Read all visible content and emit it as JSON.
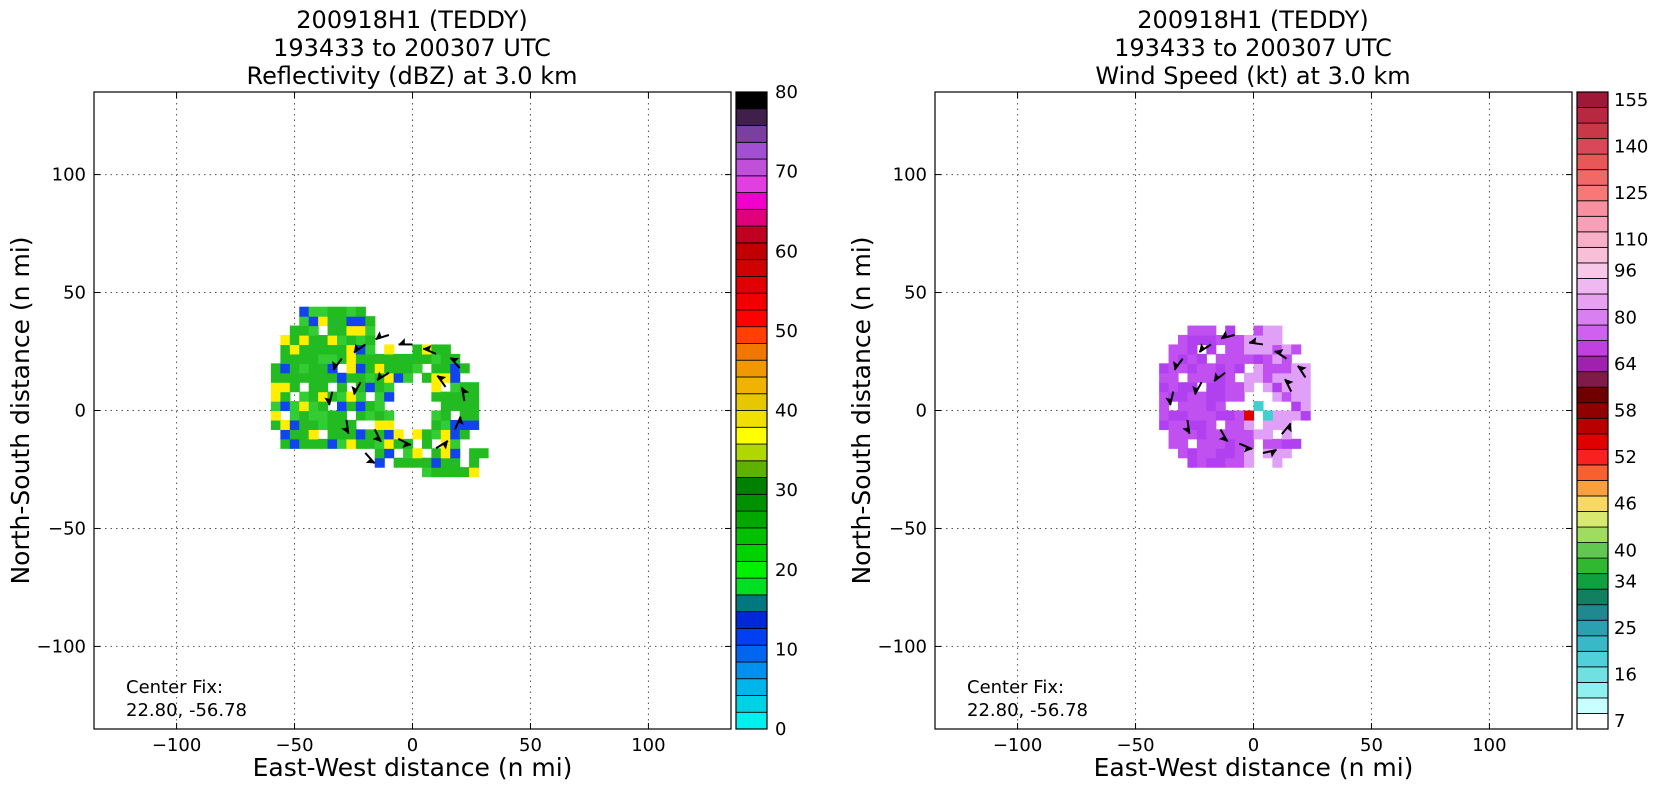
{
  "chart_data": [
    {
      "type": "heatmap",
      "title_lines": [
        "200918H1 (TEDDY)",
        "193433 to 200307 UTC",
        "Reflectivity (dBZ) at 3.0 km"
      ],
      "xlabel": "East-West distance (n mi)",
      "ylabel": "North-South distance (n mi)",
      "xlim": [
        -135,
        135
      ],
      "ylim": [
        -135,
        135
      ],
      "xticks": [
        -100,
        -50,
        0,
        50,
        100
      ],
      "yticks": [
        -100,
        -50,
        0,
        50,
        100
      ],
      "xtick_labels": [
        "−100",
        "−50",
        "0",
        "50",
        "100"
      ],
      "ytick_labels": [
        "−100",
        "−50",
        "0",
        "50",
        "100"
      ],
      "grid": true,
      "annotation": [
        "Center Fix:",
        "22.80, -56.78"
      ],
      "colorbar": {
        "range": [
          0,
          80
        ],
        "tick_values": [
          0,
          10,
          20,
          30,
          40,
          50,
          60,
          70,
          80
        ],
        "tick_labels": [
          "0",
          "10",
          "20",
          "30",
          "40",
          "50",
          "60",
          "70",
          "80"
        ],
        "colors": [
          "#00f0f0",
          "#00d2e6",
          "#00b4ec",
          "#0090f0",
          "#0066f0",
          "#0040f0",
          "#0028d8",
          "#00787f",
          "#00e020",
          "#00f000",
          "#00d200",
          "#00c000",
          "#00a800",
          "#009000",
          "#008000",
          "#60b000",
          "#b0d800",
          "#ffff00",
          "#f0e000",
          "#e6c800",
          "#f0b400",
          "#f09800",
          "#f07800",
          "#ff4000",
          "#ff0000",
          "#f00000",
          "#e00000",
          "#d00000",
          "#c00000",
          "#c00020",
          "#e0007a",
          "#f000c8",
          "#e040e0",
          "#c050d8",
          "#a050d0",
          "#7a40a0",
          "#40204a",
          "#000000"
        ]
      },
      "features": {
        "center_x": 0,
        "center_y": 0,
        "eye_radius": 10,
        "ring_outer_radius": 28,
        "outer_band": "west-northwest arc from about -62 to -20 x, -20 to 45 y",
        "dominant_colors": [
          "#22bb22",
          "#ffee00",
          "#1144ee"
        ]
      }
    },
    {
      "type": "heatmap",
      "title_lines": [
        "200918H1 (TEDDY)",
        "193433 to 200307 UTC",
        "Wind Speed (kt) at 3.0 km"
      ],
      "xlabel": "East-West distance (n mi)",
      "ylabel": "North-South distance (n mi)",
      "xlim": [
        -135,
        135
      ],
      "ylim": [
        -135,
        135
      ],
      "xticks": [
        -100,
        -50,
        0,
        50,
        100
      ],
      "yticks": [
        -100,
        -50,
        0,
        50,
        100
      ],
      "xtick_labels": [
        "−100",
        "−50",
        "0",
        "50",
        "100"
      ],
      "ytick_labels": [
        "−100",
        "−50",
        "0",
        "50",
        "100"
      ],
      "grid": true,
      "annotation": [
        "Center Fix:",
        "22.80, -56.78"
      ],
      "colorbar": {
        "tick_labels": [
          "7",
          "16",
          "25",
          "34",
          "40",
          "46",
          "52",
          "58",
          "64",
          "80",
          "96",
          "110",
          "125",
          "140",
          "155"
        ],
        "colors": [
          "#ffffff",
          "#c8ffff",
          "#90f0f0",
          "#70e0e0",
          "#50d0d8",
          "#38b8c8",
          "#2aa0b0",
          "#208890",
          "#108060",
          "#10a040",
          "#30b830",
          "#60c850",
          "#a0dc60",
          "#d8e870",
          "#f8d860",
          "#f8a040",
          "#f86030",
          "#f82020",
          "#e00000",
          "#b80000",
          "#900000",
          "#700000",
          "#801a48",
          "#a020b0",
          "#c040e0",
          "#d060f0",
          "#d880f0",
          "#e8a0f0",
          "#f0b8f0",
          "#f8c8e8",
          "#f8c0d8",
          "#f8b0c8",
          "#f8a0b8",
          "#f890a0",
          "#f87878",
          "#f06868",
          "#e85858",
          "#d84858",
          "#c83848",
          "#b82840",
          "#a01838"
        ]
      },
      "features": {
        "center_x": 0,
        "center_y": 0,
        "eye_radius": 8,
        "inner_core_colors": [
          "#40d0d0",
          "#e00000"
        ],
        "dominant_colors": [
          "#c050f0",
          "#e0a0f8"
        ]
      }
    }
  ]
}
